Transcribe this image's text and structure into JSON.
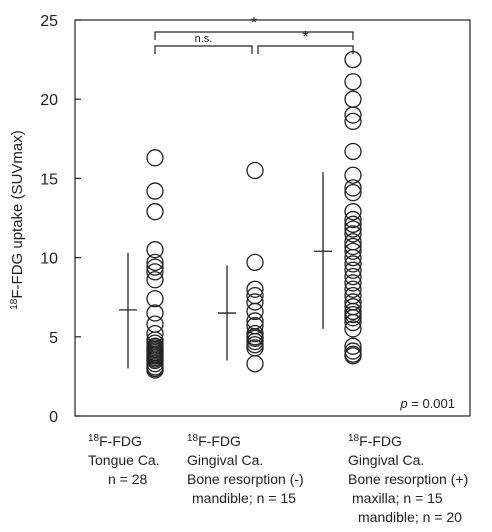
{
  "chart_data": {
    "type": "scatter",
    "ylabel_pre": "18",
    "ylabel": "F-FDG uptake (SUVmax)",
    "ylim": [
      0,
      25
    ],
    "yticks": [
      0,
      5,
      10,
      15,
      20,
      25
    ],
    "p_value_label": "p",
    "p_value_text": " = 0.001",
    "groups": [
      {
        "label_pre": "18",
        "label_lines": [
          "F-FDG",
          "Tongue Ca.",
          "n = 28"
        ],
        "values": [
          16.3,
          14.2,
          12.9,
          10.5,
          9.7,
          9.4,
          9.1,
          8.6,
          7.4,
          6.5,
          5.8,
          5.2,
          4.8,
          4.6,
          4.4,
          4.2,
          4.0,
          3.9,
          3.7,
          3.5,
          3.3,
          3.1,
          3.0,
          2.9,
          4.1,
          3.8,
          4.3,
          3.6
        ],
        "mean": 6.7,
        "sd_low": 3.0,
        "sd_high": 10.3
      },
      {
        "label_pre": "18",
        "label_lines": [
          "F-FDG",
          "Gingival Ca.",
          "Bone resorption (-)",
          "mandible; n = 15"
        ],
        "values": [
          15.5,
          9.7,
          8.0,
          7.6,
          7.2,
          6.6,
          6.0,
          5.7,
          5.0,
          4.7,
          4.5,
          4.3,
          3.3,
          5.2,
          4.9
        ],
        "mean": 6.5,
        "sd_low": 3.5,
        "sd_high": 9.5
      },
      {
        "label_pre": "18",
        "label_lines": [
          "F-FDG",
          "Gingival Ca.",
          "Bone resorption (+)",
          "maxilla; n = 15",
          "mandible; n = 20"
        ],
        "values": [
          22.5,
          21.1,
          20.0,
          19.0,
          18.6,
          16.7,
          15.2,
          14.4,
          14.1,
          12.9,
          12.4,
          12.1,
          11.8,
          11.5,
          11.0,
          10.7,
          10.4,
          10.0,
          9.6,
          9.2,
          8.8,
          8.4,
          8.0,
          7.6,
          7.2,
          6.9,
          6.6,
          6.4,
          6.2,
          5.9,
          5.5,
          4.4,
          4.1,
          3.9,
          3.8
        ],
        "mean": 10.4,
        "sd_low": 5.5,
        "sd_high": 15.4
      }
    ],
    "comparisons": [
      {
        "from": 0,
        "to": 1,
        "label": "n.s."
      },
      {
        "from": 1,
        "to": 2,
        "label": "*"
      },
      {
        "from": 0,
        "to": 2,
        "label": "*"
      }
    ]
  }
}
